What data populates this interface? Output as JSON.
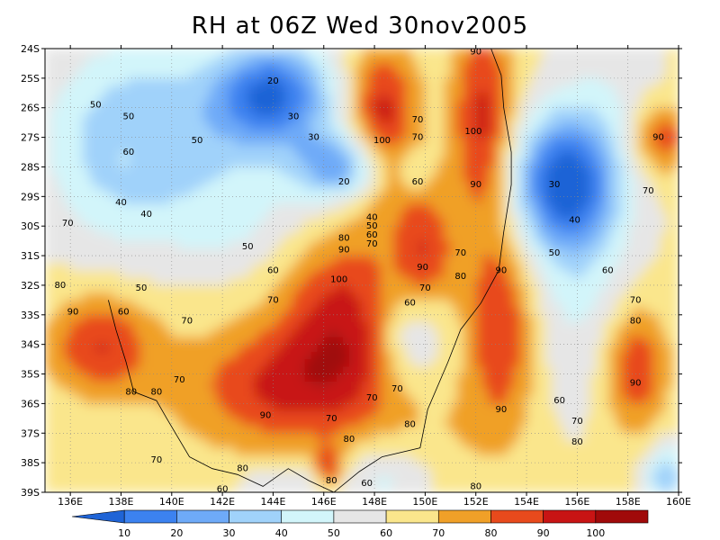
{
  "chart_data": {
    "type": "heatmap",
    "title": "RH at 06Z Wed 30nov2005",
    "x_ticks": [
      "136E",
      "138E",
      "140E",
      "142E",
      "144E",
      "146E",
      "148E",
      "150E",
      "152E",
      "154E",
      "156E",
      "158E",
      "160E"
    ],
    "y_ticks": [
      "24S",
      "25S",
      "26S",
      "27S",
      "28S",
      "29S",
      "30S",
      "31S",
      "32S",
      "33S",
      "34S",
      "35S",
      "36S",
      "37S",
      "38S",
      "39S"
    ],
    "xlim": [
      135,
      160
    ],
    "ylim": [
      -39,
      -24
    ],
    "grid": true,
    "colorbar": {
      "levels": [
        "10",
        "20",
        "30",
        "40",
        "50",
        "60",
        "70",
        "80",
        "90",
        "100"
      ],
      "colors": [
        "#1f64d6",
        "#3c82f0",
        "#6eaaf8",
        "#a0d2fa",
        "#d2f5fa",
        "#e6e6e6",
        "#fae68c",
        "#f0a028",
        "#e84a1c",
        "#c81414",
        "#a00a0a"
      ]
    },
    "contour_labels": [
      {
        "v": "50",
        "lon": 137.0,
        "lat": -25.9
      },
      {
        "v": "50",
        "lon": 138.3,
        "lat": -26.3
      },
      {
        "v": "60",
        "lon": 138.3,
        "lat": -27.5
      },
      {
        "v": "40",
        "lon": 138.0,
        "lat": -29.2
      },
      {
        "v": "40",
        "lon": 139.0,
        "lat": -29.6
      },
      {
        "v": "50",
        "lon": 141.0,
        "lat": -27.1
      },
      {
        "v": "20",
        "lon": 144.0,
        "lat": -25.1
      },
      {
        "v": "30",
        "lon": 144.8,
        "lat": -26.3
      },
      {
        "v": "30",
        "lon": 145.6,
        "lat": -27.0
      },
      {
        "v": "20",
        "lon": 146.8,
        "lat": -28.5
      },
      {
        "v": "40",
        "lon": 147.9,
        "lat": -29.7
      },
      {
        "v": "50",
        "lon": 147.9,
        "lat": -30.0
      },
      {
        "v": "60",
        "lon": 147.9,
        "lat": -30.3
      },
      {
        "v": "70",
        "lon": 147.9,
        "lat": -30.6
      },
      {
        "v": "80",
        "lon": 146.8,
        "lat": -30.4
      },
      {
        "v": "90",
        "lon": 146.8,
        "lat": -30.8
      },
      {
        "v": "100",
        "lon": 146.6,
        "lat": -31.8
      },
      {
        "v": "100",
        "lon": 148.3,
        "lat": -27.1
      },
      {
        "v": "70",
        "lon": 149.7,
        "lat": -26.4
      },
      {
        "v": "70",
        "lon": 149.7,
        "lat": -27.0
      },
      {
        "v": "60",
        "lon": 149.7,
        "lat": -28.5
      },
      {
        "v": "100",
        "lon": 151.9,
        "lat": -26.8
      },
      {
        "v": "90",
        "lon": 152.0,
        "lat": -24.1
      },
      {
        "v": "90",
        "lon": 152.0,
        "lat": -28.6
      },
      {
        "v": "90",
        "lon": 149.9,
        "lat": -31.4
      },
      {
        "v": "70",
        "lon": 151.4,
        "lat": -30.9
      },
      {
        "v": "80",
        "lon": 151.4,
        "lat": -31.7
      },
      {
        "v": "90",
        "lon": 153.0,
        "lat": -31.5
      },
      {
        "v": "70",
        "lon": 150.0,
        "lat": -32.1
      },
      {
        "v": "60",
        "lon": 149.4,
        "lat": -32.6
      },
      {
        "v": "70",
        "lon": 148.9,
        "lat": -35.5
      },
      {
        "v": "70",
        "lon": 147.9,
        "lat": -35.8
      },
      {
        "v": "80",
        "lon": 149.4,
        "lat": -36.7
      },
      {
        "v": "90",
        "lon": 153.0,
        "lat": -36.2
      },
      {
        "v": "30",
        "lon": 155.1,
        "lat": -28.6
      },
      {
        "v": "40",
        "lon": 155.9,
        "lat": -29.8
      },
      {
        "v": "50",
        "lon": 155.1,
        "lat": -30.9
      },
      {
        "v": "60",
        "lon": 157.2,
        "lat": -31.5
      },
      {
        "v": "70",
        "lon": 158.3,
        "lat": -32.5
      },
      {
        "v": "80",
        "lon": 158.3,
        "lat": -33.2
      },
      {
        "v": "90",
        "lon": 158.3,
        "lat": -35.3
      },
      {
        "v": "90",
        "lon": 159.2,
        "lat": -27.0
      },
      {
        "v": "70",
        "lon": 158.8,
        "lat": -28.8
      },
      {
        "v": "60",
        "lon": 155.3,
        "lat": -35.9
      },
      {
        "v": "70",
        "lon": 156.0,
        "lat": -36.6
      },
      {
        "v": "80",
        "lon": 156.0,
        "lat": -37.3
      },
      {
        "v": "70",
        "lon": 135.9,
        "lat": -29.9
      },
      {
        "v": "80",
        "lon": 135.6,
        "lat": -32.0
      },
      {
        "v": "90",
        "lon": 136.1,
        "lat": -32.9
      },
      {
        "v": "60",
        "lon": 138.1,
        "lat": -32.9
      },
      {
        "v": "50",
        "lon": 138.8,
        "lat": -32.1
      },
      {
        "v": "70",
        "lon": 140.6,
        "lat": -33.2
      },
      {
        "v": "80",
        "lon": 138.4,
        "lat": -35.6
      },
      {
        "v": "80",
        "lon": 139.4,
        "lat": -35.6
      },
      {
        "v": "70",
        "lon": 140.3,
        "lat": -35.2
      },
      {
        "v": "90",
        "lon": 143.7,
        "lat": -36.4
      },
      {
        "v": "70",
        "lon": 139.4,
        "lat": -37.9
      },
      {
        "v": "60",
        "lon": 142.0,
        "lat": -38.9
      },
      {
        "v": "80",
        "lon": 142.8,
        "lat": -38.2
      },
      {
        "v": "70",
        "lon": 146.3,
        "lat": -36.5
      },
      {
        "v": "80",
        "lon": 147.0,
        "lat": -37.2
      },
      {
        "v": "80",
        "lon": 146.3,
        "lat": -38.6
      },
      {
        "v": "60",
        "lon": 147.7,
        "lat": -38.7
      },
      {
        "v": "80",
        "lon": 152.0,
        "lat": -38.8
      },
      {
        "v": "50",
        "lon": 143.0,
        "lat": -30.7
      },
      {
        "v": "60",
        "lon": 144.0,
        "lat": -31.5
      },
      {
        "v": "70",
        "lon": 144.0,
        "lat": -32.5
      }
    ]
  }
}
